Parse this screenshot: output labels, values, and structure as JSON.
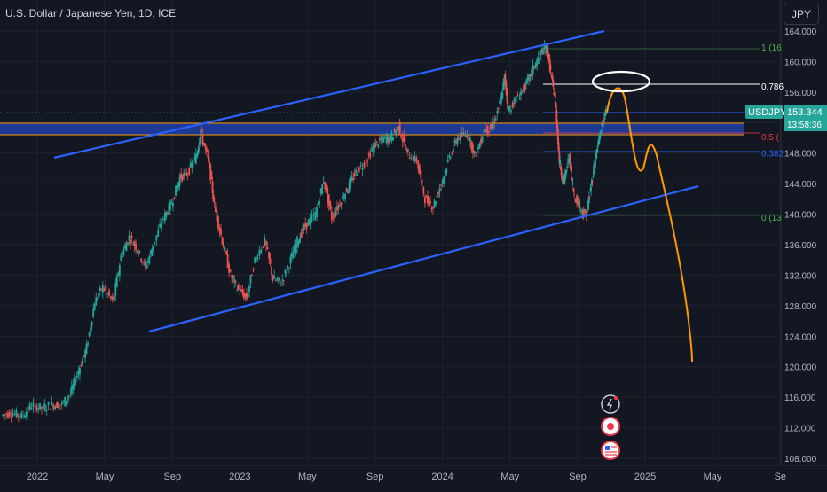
{
  "header": {
    "title": "U.S. Dollar / Japanese Yen, 1D, ICE",
    "currency": "JPY"
  },
  "price_tag": {
    "symbol": "USDJPY",
    "price": "153.344",
    "countdown": "13:58:36"
  },
  "fib_labels": [
    {
      "text": "1 (16",
      "level": 161.9,
      "color": "#4caf50"
    },
    {
      "text": "0.786",
      "level": 156.8,
      "color": "#ffffff"
    },
    {
      "text": "0.5 (",
      "level": 150.2,
      "color": "#f23645"
    },
    {
      "text": "0.382",
      "level": 148.0,
      "color": "#2962ff"
    },
    {
      "text": "0 (13",
      "level": 139.6,
      "color": "#4caf50"
    }
  ],
  "chart_data": {
    "type": "line",
    "title": "U.S. Dollar / Japanese Yen, 1D, ICE",
    "xlabel": "",
    "ylabel": "",
    "ylim": [
      107.0,
      165.0
    ],
    "y_ticks": [
      "108.000",
      "112.000",
      "116.000",
      "120.000",
      "124.000",
      "128.000",
      "132.000",
      "136.000",
      "140.000",
      "144.000",
      "148.000",
      "152.000",
      "156.000",
      "160.000",
      "164.000"
    ],
    "x_ticks": [
      {
        "label": "2022",
        "t": 2022.0
      },
      {
        "label": "May",
        "t": 2022.333
      },
      {
        "label": "Sep",
        "t": 2022.667
      },
      {
        "label": "2023",
        "t": 2023.0
      },
      {
        "label": "May",
        "t": 2023.333
      },
      {
        "label": "Sep",
        "t": 2023.667
      },
      {
        "label": "2024",
        "t": 2024.0
      },
      {
        "label": "May",
        "t": 2024.333
      },
      {
        "label": "Sep",
        "t": 2024.667
      },
      {
        "label": "2025",
        "t": 2025.0
      },
      {
        "label": "May",
        "t": 2025.333
      },
      {
        "label": "Se",
        "t": 2025.667
      }
    ],
    "series": [
      {
        "values": [
          [
            2021.83,
            113.6
          ],
          [
            2021.88,
            114.0
          ],
          [
            2021.93,
            113.5
          ],
          [
            2021.98,
            115.0
          ],
          [
            2022.03,
            114.6
          ],
          [
            2022.08,
            115.0
          ],
          [
            2022.13,
            115.1
          ],
          [
            2022.17,
            116.5
          ],
          [
            2022.21,
            119.5
          ],
          [
            2022.25,
            122.5
          ],
          [
            2022.29,
            128.5
          ],
          [
            2022.33,
            130.5
          ],
          [
            2022.38,
            128.5
          ],
          [
            2022.42,
            134.5
          ],
          [
            2022.46,
            137.0
          ],
          [
            2022.5,
            135.5
          ],
          [
            2022.54,
            133.0
          ],
          [
            2022.58,
            136.0
          ],
          [
            2022.63,
            139.5
          ],
          [
            2022.67,
            141.5
          ],
          [
            2022.71,
            144.8
          ],
          [
            2022.75,
            145.5
          ],
          [
            2022.79,
            147.5
          ],
          [
            2022.81,
            151.0
          ],
          [
            2022.85,
            147.0
          ],
          [
            2022.88,
            141.0
          ],
          [
            2022.92,
            136.5
          ],
          [
            2022.96,
            132.0
          ],
          [
            2023.0,
            130.0
          ],
          [
            2023.04,
            129.0
          ],
          [
            2023.08,
            134.0
          ],
          [
            2023.13,
            136.5
          ],
          [
            2023.17,
            131.5
          ],
          [
            2023.21,
            131.0
          ],
          [
            2023.25,
            133.5
          ],
          [
            2023.29,
            136.5
          ],
          [
            2023.33,
            138.5
          ],
          [
            2023.38,
            140.0
          ],
          [
            2023.42,
            144.5
          ],
          [
            2023.46,
            139.5
          ],
          [
            2023.5,
            141.5
          ],
          [
            2023.54,
            143.5
          ],
          [
            2023.58,
            145.5
          ],
          [
            2023.63,
            147.0
          ],
          [
            2023.67,
            149.0
          ],
          [
            2023.71,
            149.8
          ],
          [
            2023.75,
            150.0
          ],
          [
            2023.79,
            151.5
          ],
          [
            2023.83,
            148.0
          ],
          [
            2023.88,
            147.0
          ],
          [
            2023.92,
            142.0
          ],
          [
            2023.96,
            141.0
          ],
          [
            2024.0,
            144.0
          ],
          [
            2024.04,
            147.5
          ],
          [
            2024.08,
            150.0
          ],
          [
            2024.13,
            150.5
          ],
          [
            2024.17,
            147.5
          ],
          [
            2024.21,
            151.0
          ],
          [
            2024.25,
            151.3
          ],
          [
            2024.29,
            154.5
          ],
          [
            2024.31,
            158.0
          ],
          [
            2024.33,
            153.5
          ],
          [
            2024.38,
            155.5
          ],
          [
            2024.42,
            157.0
          ],
          [
            2024.46,
            159.5
          ],
          [
            2024.5,
            161.5
          ],
          [
            2024.52,
            161.8
          ],
          [
            2024.54,
            158.0
          ],
          [
            2024.56,
            155.0
          ],
          [
            2024.58,
            147.0
          ],
          [
            2024.6,
            144.0
          ],
          [
            2024.63,
            147.5
          ],
          [
            2024.65,
            143.0
          ],
          [
            2024.69,
            140.5
          ],
          [
            2024.71,
            139.8
          ],
          [
            2024.73,
            142.5
          ],
          [
            2024.75,
            146.0
          ],
          [
            2024.77,
            149.0
          ],
          [
            2024.79,
            151.5
          ],
          [
            2024.81,
            153.3
          ]
        ]
      }
    ]
  }
}
